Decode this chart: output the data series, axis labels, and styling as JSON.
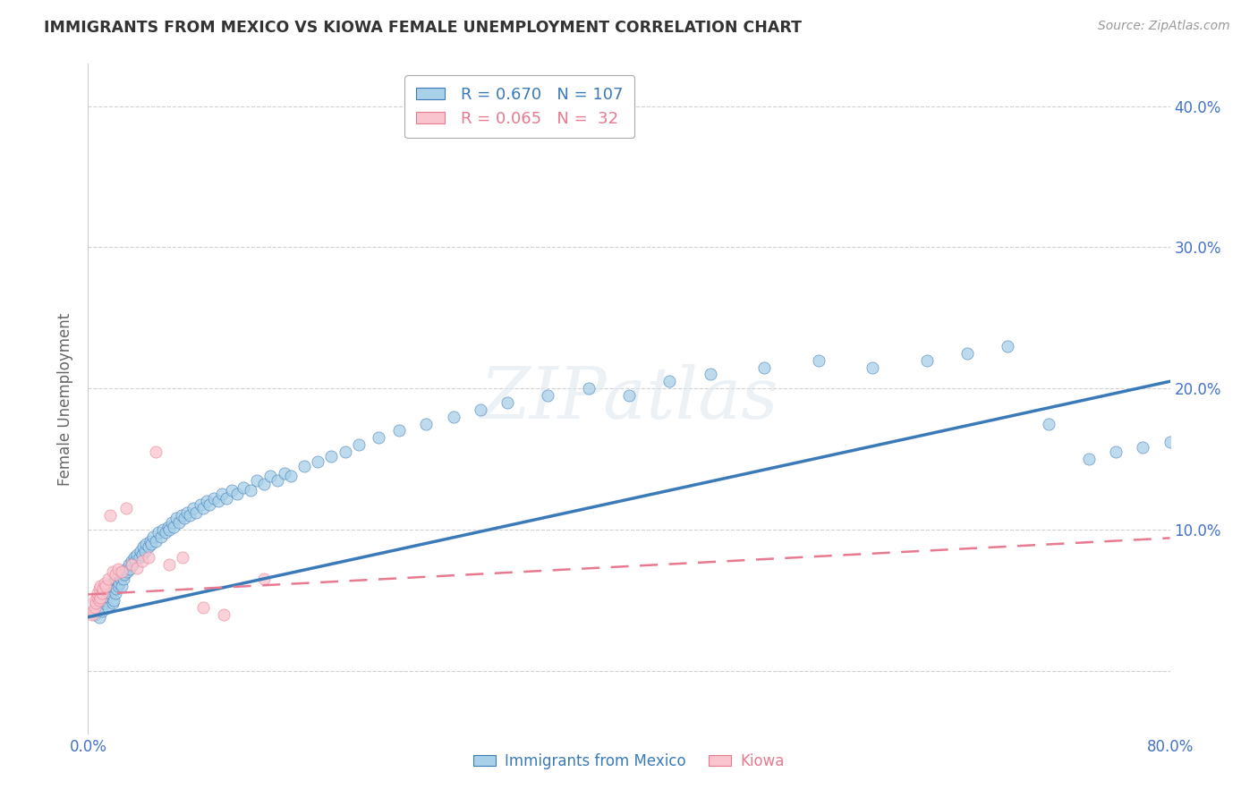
{
  "title": "IMMIGRANTS FROM MEXICO VS KIOWA FEMALE UNEMPLOYMENT CORRELATION CHART",
  "source": "Source: ZipAtlas.com",
  "ylabel": "Female Unemployment",
  "right_ytick_labels": [
    "",
    "10.0%",
    "20.0%",
    "30.0%",
    "40.0%"
  ],
  "right_ytick_vals": [
    0.0,
    0.1,
    0.2,
    0.3,
    0.4
  ],
  "xlim": [
    0.0,
    0.8
  ],
  "ylim": [
    -0.045,
    0.43
  ],
  "legend": {
    "blue_R": "0.670",
    "blue_N": "107",
    "pink_R": "0.065",
    "pink_N": " 32"
  },
  "watermark": "ZIPatlas",
  "blue_color": "#a8d0e8",
  "blue_line_color": "#3b7ab8",
  "pink_color": "#f9c4ce",
  "pink_line_color": "#e87a90",
  "background": "#ffffff",
  "grid_color": "#cccccc",
  "blue_scatter_x": [
    0.005,
    0.007,
    0.008,
    0.01,
    0.01,
    0.012,
    0.013,
    0.014,
    0.015,
    0.015,
    0.016,
    0.017,
    0.018,
    0.018,
    0.019,
    0.02,
    0.02,
    0.021,
    0.022,
    0.022,
    0.023,
    0.024,
    0.025,
    0.025,
    0.026,
    0.027,
    0.028,
    0.029,
    0.03,
    0.031,
    0.032,
    0.033,
    0.034,
    0.035,
    0.036,
    0.038,
    0.039,
    0.04,
    0.041,
    0.042,
    0.043,
    0.045,
    0.046,
    0.047,
    0.048,
    0.05,
    0.052,
    0.054,
    0.055,
    0.057,
    0.059,
    0.06,
    0.062,
    0.063,
    0.065,
    0.067,
    0.069,
    0.071,
    0.073,
    0.075,
    0.078,
    0.08,
    0.083,
    0.085,
    0.088,
    0.09,
    0.093,
    0.096,
    0.099,
    0.102,
    0.106,
    0.11,
    0.115,
    0.12,
    0.125,
    0.13,
    0.135,
    0.14,
    0.145,
    0.15,
    0.16,
    0.17,
    0.18,
    0.19,
    0.2,
    0.215,
    0.23,
    0.25,
    0.27,
    0.29,
    0.31,
    0.34,
    0.37,
    0.4,
    0.43,
    0.46,
    0.5,
    0.54,
    0.58,
    0.62,
    0.65,
    0.68,
    0.71,
    0.74,
    0.76,
    0.78,
    0.8
  ],
  "blue_scatter_y": [
    0.04,
    0.045,
    0.038,
    0.042,
    0.055,
    0.048,
    0.05,
    0.052,
    0.045,
    0.058,
    0.055,
    0.06,
    0.048,
    0.062,
    0.05,
    0.055,
    0.065,
    0.058,
    0.06,
    0.068,
    0.062,
    0.065,
    0.06,
    0.07,
    0.065,
    0.068,
    0.072,
    0.07,
    0.075,
    0.072,
    0.078,
    0.075,
    0.08,
    0.078,
    0.082,
    0.08,
    0.085,
    0.082,
    0.088,
    0.085,
    0.09,
    0.088,
    0.092,
    0.09,
    0.095,
    0.092,
    0.098,
    0.095,
    0.1,
    0.098,
    0.102,
    0.1,
    0.105,
    0.102,
    0.108,
    0.105,
    0.11,
    0.108,
    0.112,
    0.11,
    0.115,
    0.112,
    0.118,
    0.115,
    0.12,
    0.118,
    0.122,
    0.12,
    0.125,
    0.122,
    0.128,
    0.125,
    0.13,
    0.128,
    0.135,
    0.132,
    0.138,
    0.135,
    0.14,
    0.138,
    0.145,
    0.148,
    0.152,
    0.155,
    0.16,
    0.165,
    0.17,
    0.175,
    0.18,
    0.185,
    0.19,
    0.195,
    0.2,
    0.195,
    0.205,
    0.21,
    0.215,
    0.22,
    0.215,
    0.22,
    0.225,
    0.23,
    0.175,
    0.15,
    0.155,
    0.158,
    0.162
  ],
  "pink_scatter_x": [
    0.003,
    0.004,
    0.005,
    0.005,
    0.006,
    0.007,
    0.007,
    0.008,
    0.008,
    0.009,
    0.009,
    0.01,
    0.011,
    0.012,
    0.013,
    0.015,
    0.016,
    0.018,
    0.02,
    0.022,
    0.025,
    0.028,
    0.032,
    0.036,
    0.04,
    0.045,
    0.05,
    0.06,
    0.07,
    0.085,
    0.1,
    0.13
  ],
  "pink_scatter_y": [
    0.04,
    0.042,
    0.045,
    0.05,
    0.048,
    0.052,
    0.055,
    0.05,
    0.058,
    0.052,
    0.06,
    0.055,
    0.058,
    0.062,
    0.06,
    0.065,
    0.11,
    0.07,
    0.068,
    0.072,
    0.07,
    0.115,
    0.075,
    0.073,
    0.078,
    0.08,
    0.155,
    0.075,
    0.08,
    0.045,
    0.04,
    0.065
  ],
  "blue_trend_x": [
    0.0,
    0.8
  ],
  "blue_trend_y": [
    0.038,
    0.205
  ],
  "pink_trend_x": [
    0.0,
    0.8
  ],
  "pink_trend_y": [
    0.054,
    0.094
  ],
  "title_color": "#333333",
  "axis_label_color": "#666666",
  "right_axis_color": "#4472c4",
  "tick_label_color": "#4472c4"
}
